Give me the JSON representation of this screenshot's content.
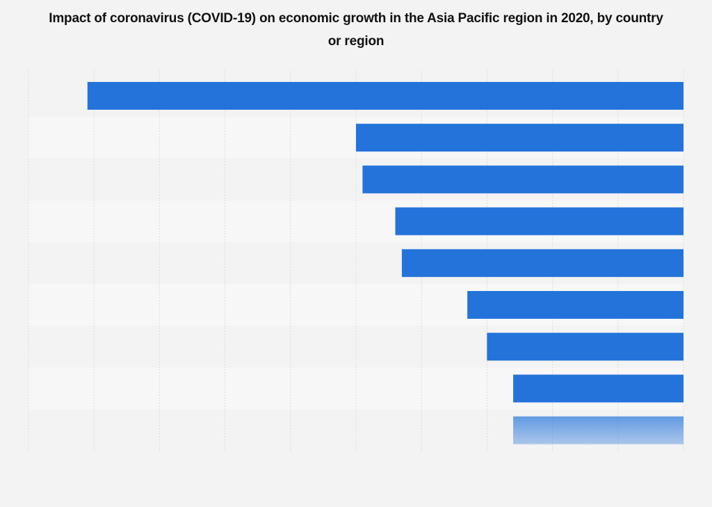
{
  "chart_data": {
    "type": "bar",
    "orientation": "horizontal",
    "title": "Impact of coronavirus (COVID-19) on economic growth in the Asia Pacific region in 2020, by country or region",
    "xlabel": "",
    "ylabel": "",
    "categories": [
      "",
      "",
      "",
      "",
      "",
      "",
      "",
      "",
      ""
    ],
    "values": [
      -9.1,
      -5.0,
      -4.9,
      -4.4,
      -4.3,
      -3.3,
      -3.0,
      -2.6,
      -2.6
    ],
    "xlim": [
      -10,
      0
    ],
    "grid": true,
    "tick_labels_visible": false,
    "last_bar_faded": true,
    "note": "Category labels and axis tick labels are not shown; values estimated in gridline units"
  },
  "colors": {
    "bar": "#2373db",
    "background": "#f3f3f3",
    "row_alt": "#f7f7f7",
    "gridline": "#dcdcdc"
  }
}
